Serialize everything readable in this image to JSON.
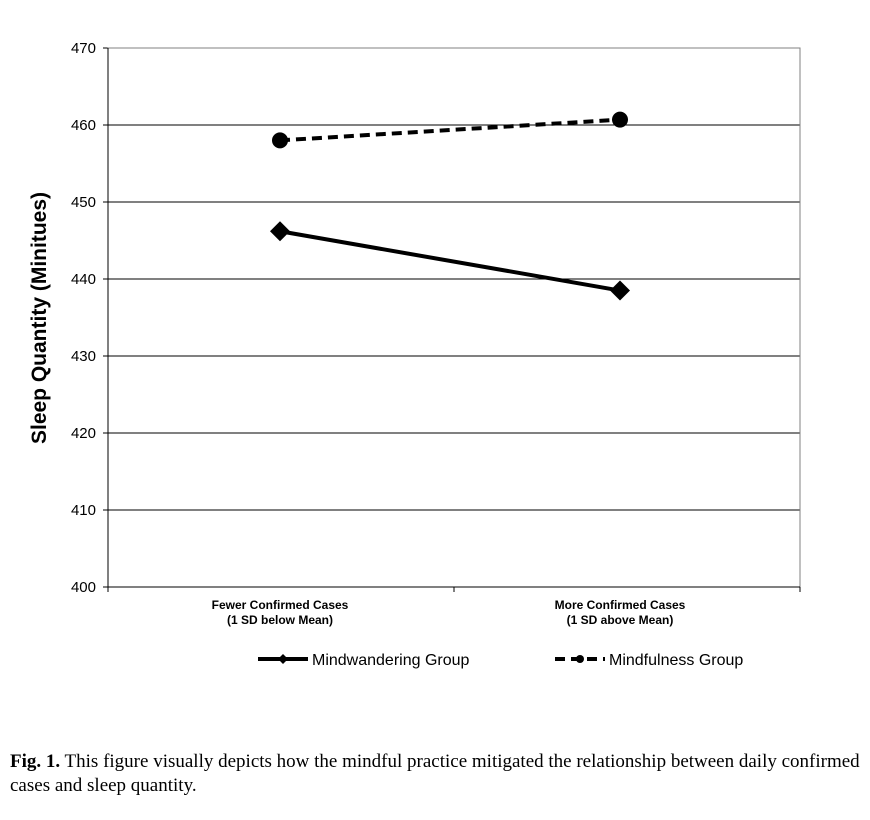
{
  "chart_data": {
    "type": "line",
    "title": "",
    "xlabel": "",
    "ylabel": "Sleep Quantity (Minitues)",
    "ylim": [
      400,
      470
    ],
    "yticks": [
      400,
      410,
      420,
      430,
      440,
      450,
      460,
      470
    ],
    "grid": true,
    "categories": [
      [
        "Fewer Confirmed Cases",
        "(1 SD below Mean)"
      ],
      [
        "More Confirmed Cases",
        "(1 SD above Mean)"
      ]
    ],
    "series": [
      {
        "name": "Mindwandering Group",
        "values": [
          446.2,
          438.5
        ],
        "style": "solid",
        "marker": "diamond",
        "color": "#000000"
      },
      {
        "name": "Mindfulness Group",
        "values": [
          458.0,
          460.7
        ],
        "style": "dashed",
        "marker": "circle",
        "color": "#000000"
      }
    ],
    "legend": "bottom"
  },
  "caption": {
    "label": "Fig. 1.",
    "text": " This figure visually depicts how the mindful practice mitigated the relationship between daily confirmed cases and sleep quantity."
  }
}
